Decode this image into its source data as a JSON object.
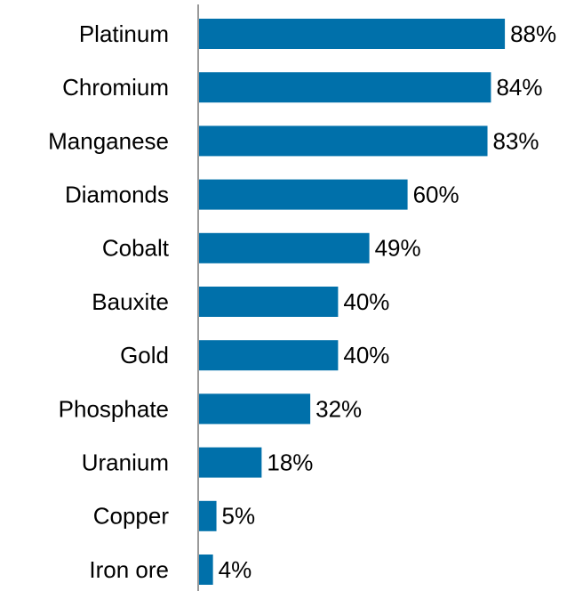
{
  "chart_data": {
    "type": "bar",
    "orientation": "horizontal",
    "categories": [
      "Platinum",
      "Chromium",
      "Manganese",
      "Diamonds",
      "Cobalt",
      "Bauxite",
      "Gold",
      "Phosphate",
      "Uranium",
      "Copper",
      "Iron ore"
    ],
    "values": [
      88,
      84,
      83,
      60,
      49,
      40,
      40,
      32,
      18,
      5,
      4
    ],
    "value_labels": [
      "88%",
      "84%",
      "83%",
      "60%",
      "49%",
      "40%",
      "40%",
      "32%",
      "18%",
      "5%",
      "4%"
    ],
    "color": "#0070aa"
  }
}
